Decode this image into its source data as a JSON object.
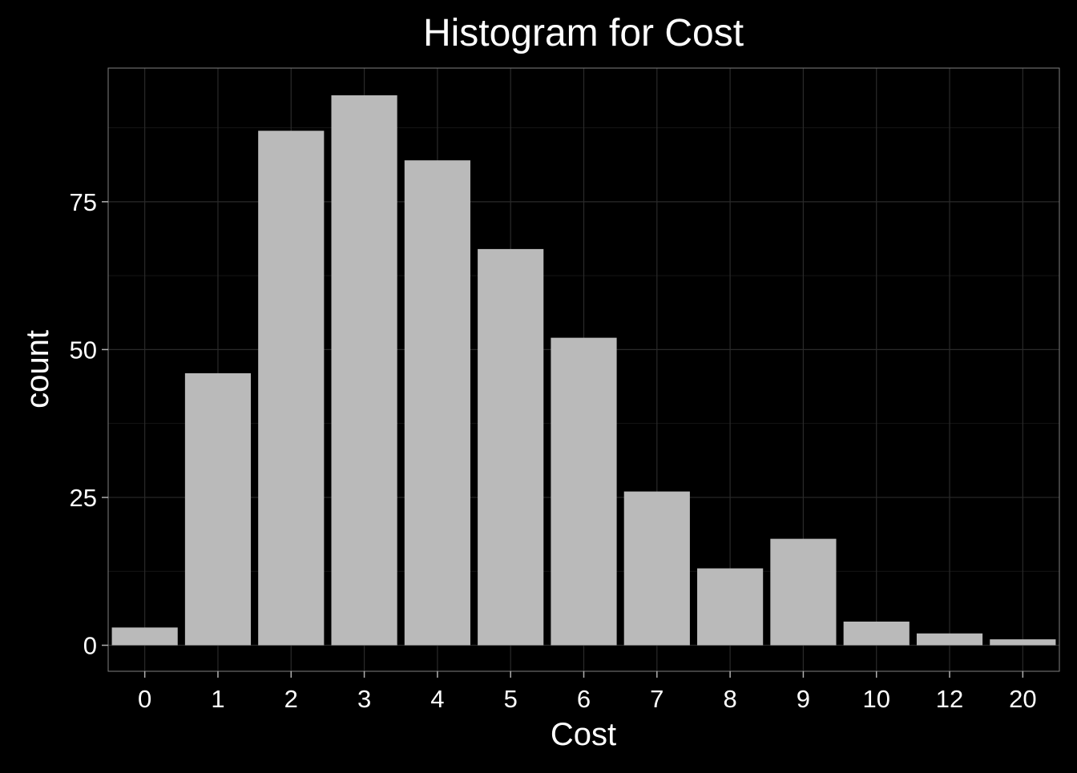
{
  "colors": {
    "background": "#000000",
    "panel_border": "#808080",
    "grid_major": "#2a2a2a",
    "grid_minor": "#151515",
    "bar_fill": "#bababa",
    "text": "#ffffff",
    "tick": "#b0b0b0"
  },
  "chart_data": {
    "type": "bar",
    "title": "Histogram for Cost",
    "xlabel": "Cost",
    "ylabel": "count",
    "categories": [
      "0",
      "1",
      "2",
      "3",
      "4",
      "5",
      "6",
      "7",
      "8",
      "9",
      "10",
      "12",
      "20"
    ],
    "values": [
      3,
      46,
      87,
      93,
      82,
      67,
      52,
      26,
      13,
      18,
      4,
      2,
      1
    ],
    "ylim": [
      -4.4,
      97.6
    ],
    "yticks": [
      0,
      25,
      50,
      75
    ],
    "yticks_minor": [
      12.5,
      37.5,
      62.5,
      87.5
    ],
    "grid": true,
    "legend": "none"
  }
}
